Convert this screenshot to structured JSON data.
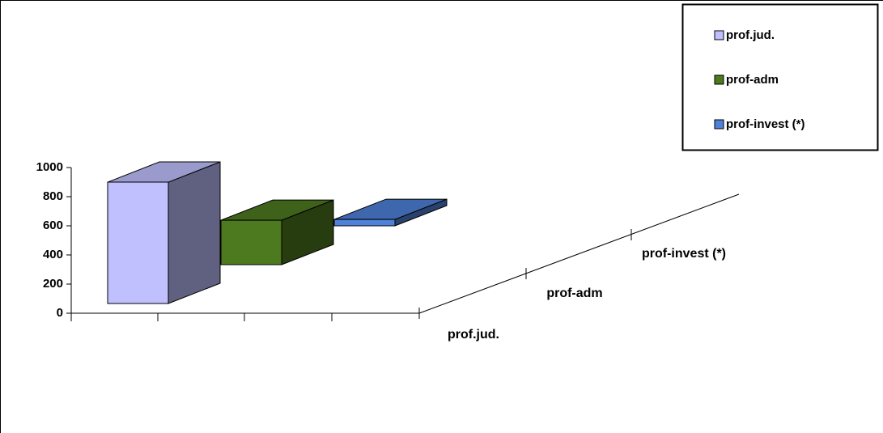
{
  "chart_data": {
    "type": "bar3d",
    "series": [
      {
        "name": "prof.jud.",
        "color": "#c0c0ff",
        "values": [
          833
        ]
      },
      {
        "name": "prof-adm",
        "color": "#4d7a1f",
        "values": [
          305
        ]
      },
      {
        "name": "prof-invest (*)",
        "color": "#4f81d9",
        "values": [
          44
        ]
      }
    ],
    "ylim": [
      0,
      1000
    ],
    "yticks": [
      0,
      200,
      400,
      600,
      800,
      1000
    ],
    "legend": "top-right"
  }
}
